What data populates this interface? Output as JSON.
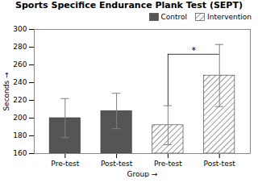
{
  "chart_data": {
    "type": "bar",
    "title": "Sports Specifice Endurance Plank Test (SEPT)",
    "xlabel": "Group",
    "ylabel": "Seconds",
    "categories": [
      "Pre-test",
      "Post-test",
      "Pre-test",
      "Post-test"
    ],
    "series": [
      {
        "name": "Control",
        "color": "#555555",
        "values": [
          200,
          208,
          null,
          null
        ],
        "errors": [
          22,
          20,
          null,
          null
        ]
      },
      {
        "name": "Intervention",
        "color": "white",
        "values": [
          null,
          null,
          192,
          248
        ],
        "errors": [
          null,
          null,
          22,
          35
        ]
      }
    ],
    "ylim": [
      160,
      300
    ],
    "yticks": [
      160,
      180,
      200,
      220,
      240,
      260,
      280,
      300
    ],
    "legend": "upper right",
    "grid": false,
    "annotations": [
      {
        "text": "*",
        "from": 2,
        "to": 3,
        "y": 272
      }
    ]
  }
}
